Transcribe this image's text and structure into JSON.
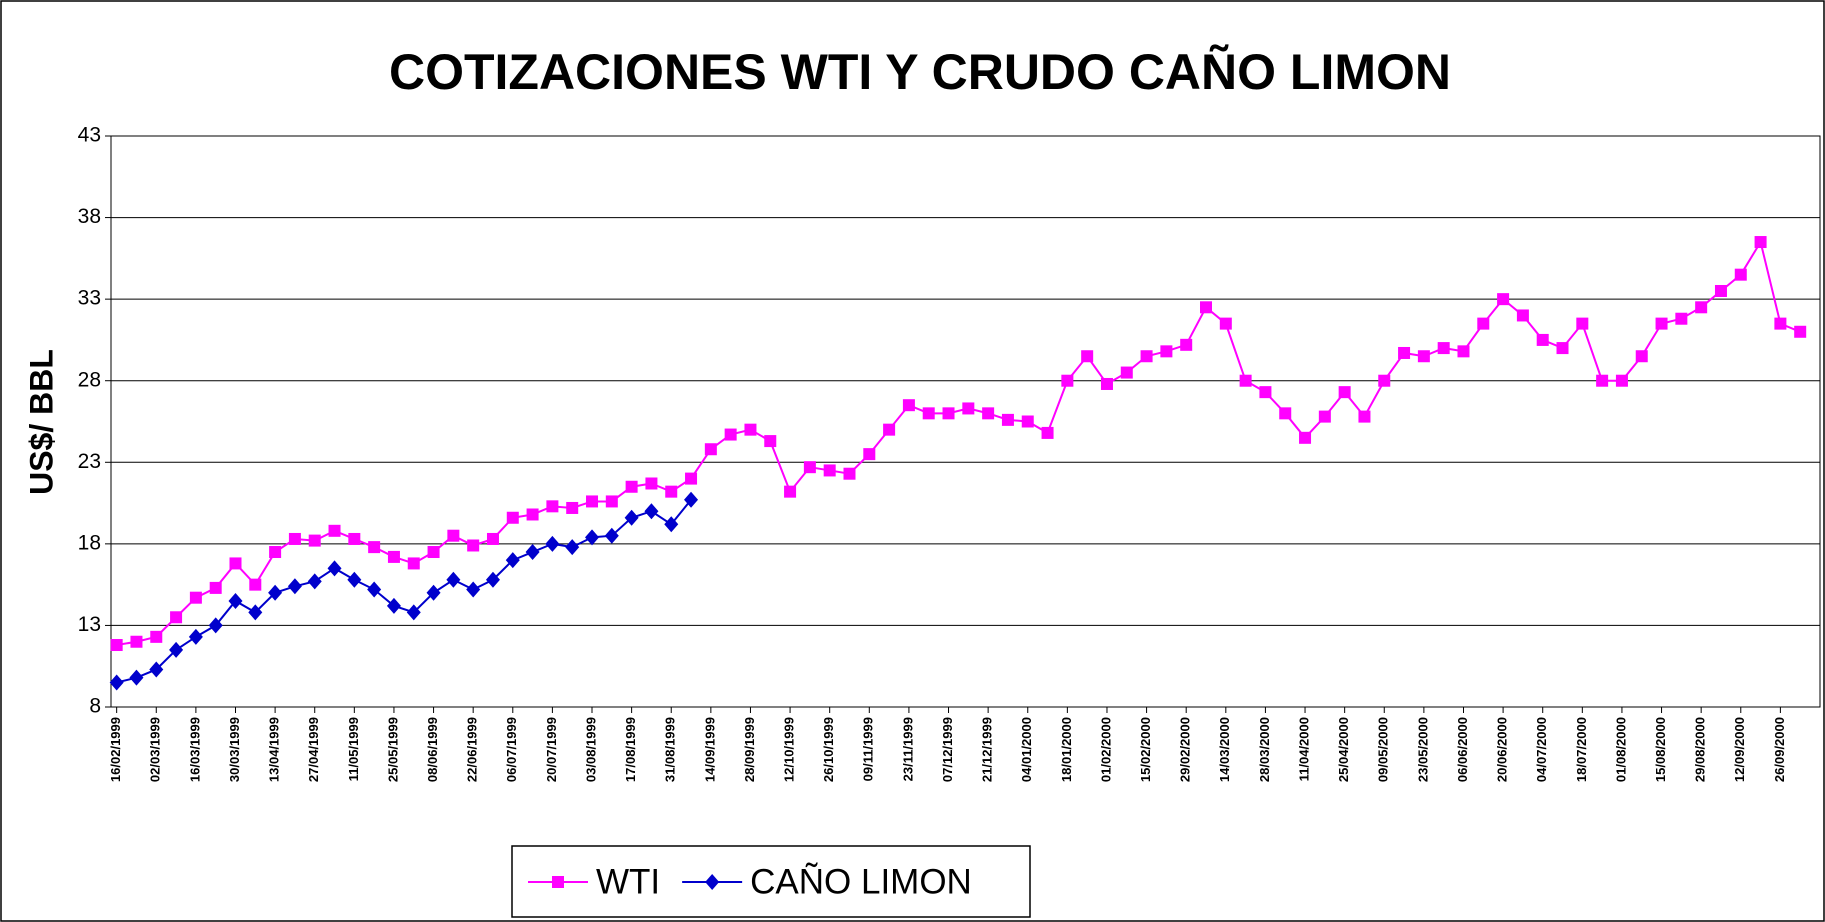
{
  "chart_data": {
    "type": "line",
    "title": "COTIZACIONES WTI Y CRUDO CAÑO LIMON",
    "y_label": "US$/ BBL",
    "x": [
      "16/02/1999",
      "23/02/1999",
      "02/03/1999",
      "09/03/1999",
      "16/03/1999",
      "23/03/1999",
      "30/03/1999",
      "06/04/1999",
      "13/04/1999",
      "20/04/1999",
      "27/04/1999",
      "04/05/1999",
      "11/05/1999",
      "18/05/1999",
      "25/05/1999",
      "01/06/1999",
      "08/06/1999",
      "15/06/1999",
      "22/06/1999",
      "29/06/1999",
      "06/07/1999",
      "13/07/1999",
      "20/07/1999",
      "27/07/1999",
      "03/08/1999",
      "10/08/1999",
      "17/08/1999",
      "24/08/1999",
      "31/08/1999",
      "07/09/1999",
      "14/09/1999",
      "21/09/1999",
      "28/09/1999",
      "05/10/1999",
      "12/10/1999",
      "19/10/1999",
      "26/10/1999",
      "02/11/1999",
      "09/11/1999",
      "16/11/1999",
      "23/11/1999",
      "30/11/1999",
      "07/12/1999",
      "14/12/1999",
      "21/12/1999",
      "28/12/1999",
      "04/01/2000",
      "11/01/2000",
      "18/01/2000",
      "25/01/2000",
      "01/02/2000",
      "08/02/2000",
      "15/02/2000",
      "22/02/2000",
      "29/02/2000",
      "07/03/2000",
      "14/03/2000",
      "21/03/2000",
      "28/03/2000",
      "04/04/2000",
      "11/04/2000",
      "18/04/2000",
      "25/04/2000",
      "02/05/2000",
      "09/05/2000",
      "16/05/2000",
      "23/05/2000",
      "30/05/2000",
      "06/06/2000",
      "13/06/2000",
      "20/06/2000",
      "27/06/2000",
      "04/07/2000",
      "11/07/2000",
      "18/07/2000",
      "25/07/2000",
      "01/08/2000",
      "08/08/2000",
      "15/08/2000",
      "22/08/2000",
      "29/08/2000",
      "05/09/2000",
      "12/09/2000",
      "19/09/2000",
      "26/09/2000",
      "03/10/2000"
    ],
    "series": [
      {
        "name": "WTI",
        "color": "#ff00ff",
        "marker": "square",
        "values": [
          11.8,
          12.0,
          12.3,
          13.5,
          14.7,
          15.3,
          16.8,
          15.5,
          17.5,
          18.3,
          18.2,
          18.8,
          18.3,
          17.8,
          17.2,
          16.8,
          17.5,
          18.5,
          17.9,
          18.3,
          19.6,
          19.8,
          20.3,
          20.2,
          20.6,
          20.6,
          21.5,
          21.7,
          21.2,
          22.0,
          23.8,
          24.7,
          25.0,
          24.3,
          21.2,
          22.7,
          22.5,
          22.3,
          23.5,
          25.0,
          26.5,
          26.0,
          26.0,
          26.3,
          26.0,
          25.6,
          25.5,
          24.8,
          28.0,
          29.5,
          27.8,
          28.5,
          29.5,
          29.8,
          30.2,
          32.5,
          31.5,
          28.0,
          27.3,
          26.0,
          24.5,
          25.8,
          27.3,
          25.8,
          28.0,
          29.7,
          29.5,
          30.0,
          29.8,
          31.5,
          33.0,
          32.0,
          30.5,
          30.0,
          31.5,
          28.0,
          28.0,
          29.5,
          31.5,
          31.8,
          32.5,
          33.5,
          34.5,
          36.5,
          31.5,
          31.0
        ]
      },
      {
        "name": "CAÑO LIMON",
        "color": "#0000cc",
        "marker": "diamond",
        "values": [
          9.5,
          9.8,
          10.3,
          11.5,
          12.3,
          13.0,
          14.5,
          13.8,
          15.0,
          15.4,
          15.7,
          16.5,
          15.8,
          15.2,
          14.2,
          13.8,
          15.0,
          15.8,
          15.2,
          15.8,
          17.0,
          17.5,
          18.0,
          17.8,
          18.4,
          18.5,
          19.6,
          20.0,
          19.2,
          20.7,
          null,
          null,
          null,
          null,
          null,
          null,
          null,
          null,
          null,
          null,
          null,
          null,
          null,
          null,
          null,
          null,
          null,
          null,
          null,
          null,
          null,
          null,
          null,
          null,
          null,
          null,
          null,
          null,
          null,
          null,
          null,
          null,
          null,
          null,
          null,
          null,
          null,
          null,
          null,
          null,
          null,
          null,
          null,
          null,
          null,
          null,
          null,
          null,
          null,
          null,
          null,
          null,
          null,
          null,
          null,
          null
        ]
      }
    ],
    "xlim": [
      "14/02/1999",
      "10/10/2000"
    ],
    "xticks": [
      "16/02/1999",
      "02/03/1999",
      "16/03/1999",
      "30/03/1999",
      "13/04/1999",
      "27/04/1999",
      "11/05/1999",
      "25/05/1999",
      "08/06/1999",
      "22/06/1999",
      "06/07/1999",
      "20/07/1999",
      "03/08/1999",
      "17/08/1999",
      "31/08/1999",
      "14/09/1999",
      "28/09/1999",
      "12/10/1999",
      "26/10/1999",
      "09/11/1999",
      "23/11/1999",
      "07/12/1999",
      "21/12/1999",
      "04/01/2000",
      "18/01/2000",
      "01/02/2000",
      "15/02/2000",
      "29/02/2000",
      "14/03/2000",
      "28/03/2000",
      "11/04/2000",
      "25/04/2000",
      "09/05/2000",
      "23/05/2000",
      "06/06/2000",
      "20/06/2000",
      "04/07/2000",
      "18/07/2000",
      "01/08/2000",
      "15/08/2000",
      "29/08/2000",
      "12/09/2000",
      "26/09/2000"
    ],
    "ylim": [
      8,
      43
    ],
    "yticks": [
      8,
      13,
      18,
      23,
      28,
      33,
      38,
      43
    ],
    "grid": true,
    "legend": "bottom"
  }
}
